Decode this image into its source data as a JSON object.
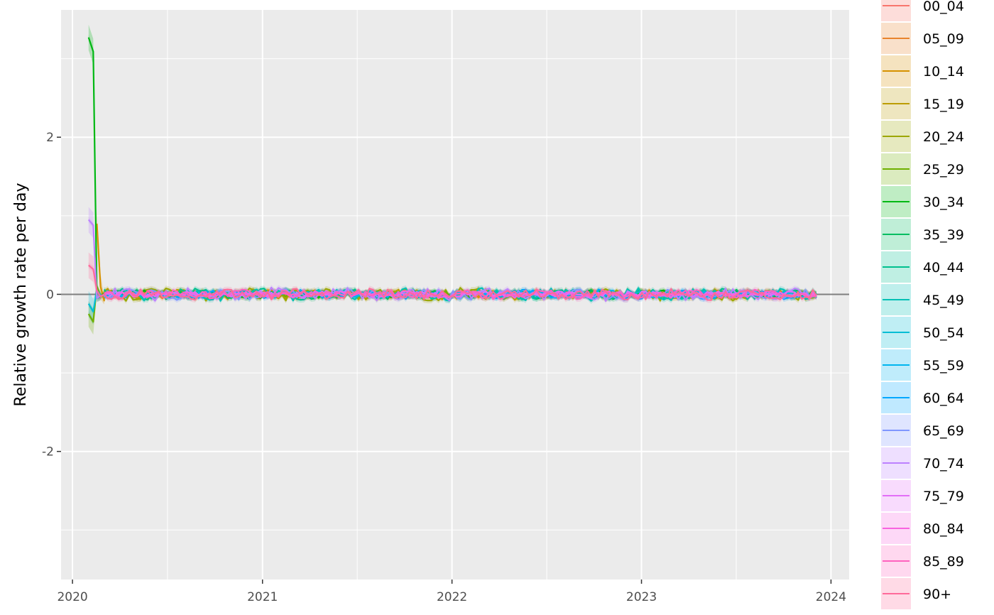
{
  "chart_data": {
    "type": "line",
    "ylabel": "Relative growth rate per day",
    "xlabel": "",
    "x_ticks": [
      "2020",
      "2021",
      "2022",
      "2023",
      "2024"
    ],
    "x_tick_dates": [
      "2020-01-01",
      "2021-01-01",
      "2022-01-01",
      "2023-01-01",
      "2024-01-01"
    ],
    "xlim": [
      "2019-12-10",
      "2024-02-05"
    ],
    "y_ticks": [
      -2,
      0,
      2
    ],
    "ylim": [
      -3.63,
      3.62
    ],
    "grid": true,
    "hline": 0,
    "legend_position": "right",
    "colors": {
      "panel_background": "#ebebeb",
      "gridline": "#ffffff",
      "zero_line": "#7f7f7f"
    },
    "series": [
      {
        "name": "00_04",
        "color": "#F8766D"
      },
      {
        "name": "05_09",
        "color": "#E9842C"
      },
      {
        "name": "10_14",
        "color": "#D69100"
      },
      {
        "name": "15_19",
        "color": "#BC9D00"
      },
      {
        "name": "20_24",
        "color": "#9CA700"
      },
      {
        "name": "25_29",
        "color": "#6FB000"
      },
      {
        "name": "30_34",
        "color": "#00B813"
      },
      {
        "name": "35_39",
        "color": "#00BD61"
      },
      {
        "name": "40_44",
        "color": "#00C08E"
      },
      {
        "name": "45_49",
        "color": "#00C0B4"
      },
      {
        "name": "50_54",
        "color": "#00BDD4"
      },
      {
        "name": "55_59",
        "color": "#00B5EE"
      },
      {
        "name": "60_64",
        "color": "#00A7FF"
      },
      {
        "name": "65_69",
        "color": "#7F96FF"
      },
      {
        "name": "70_74",
        "color": "#BC81FF"
      },
      {
        "name": "75_79",
        "color": "#E26EF7"
      },
      {
        "name": "80_84",
        "color": "#F863DF"
      },
      {
        "name": "85_89",
        "color": "#FF62BF"
      },
      {
        "name": "90+",
        "color": "#FF6A9A"
      }
    ],
    "spikes": [
      {
        "series": "30_34",
        "x": [
          "2020-02-01",
          "2020-02-10",
          "2020-02-17",
          "2020-02-24"
        ],
        "y": [
          3.27,
          3.09,
          -0.05,
          -0.03
        ]
      },
      {
        "series": "70_74",
        "x": [
          "2020-02-01",
          "2020-02-10",
          "2020-02-17",
          "2020-02-24"
        ],
        "y": [
          0.95,
          0.88,
          -0.05,
          -0.02
        ]
      },
      {
        "series": "90+",
        "x": [
          "2020-02-01",
          "2020-02-10",
          "2020-02-17",
          "2020-02-24"
        ],
        "y": [
          0.37,
          0.32,
          0.05,
          -0.03
        ]
      },
      {
        "series": "25_29",
        "x": [
          "2020-02-01",
          "2020-02-10",
          "2020-02-17",
          "2020-02-24"
        ],
        "y": [
          -0.25,
          -0.35,
          0.1,
          -0.02
        ]
      },
      {
        "series": "50_54",
        "x": [
          "2020-02-01",
          "2020-02-10",
          "2020-02-17",
          "2020-02-24"
        ],
        "y": [
          -0.12,
          -0.22,
          0.05,
          -0.01
        ]
      },
      {
        "series": "10_14",
        "x": [
          "2020-02-17",
          "2020-02-24",
          "2020-03-02"
        ],
        "y": [
          0.9,
          0.1,
          -0.08
        ]
      }
    ]
  }
}
